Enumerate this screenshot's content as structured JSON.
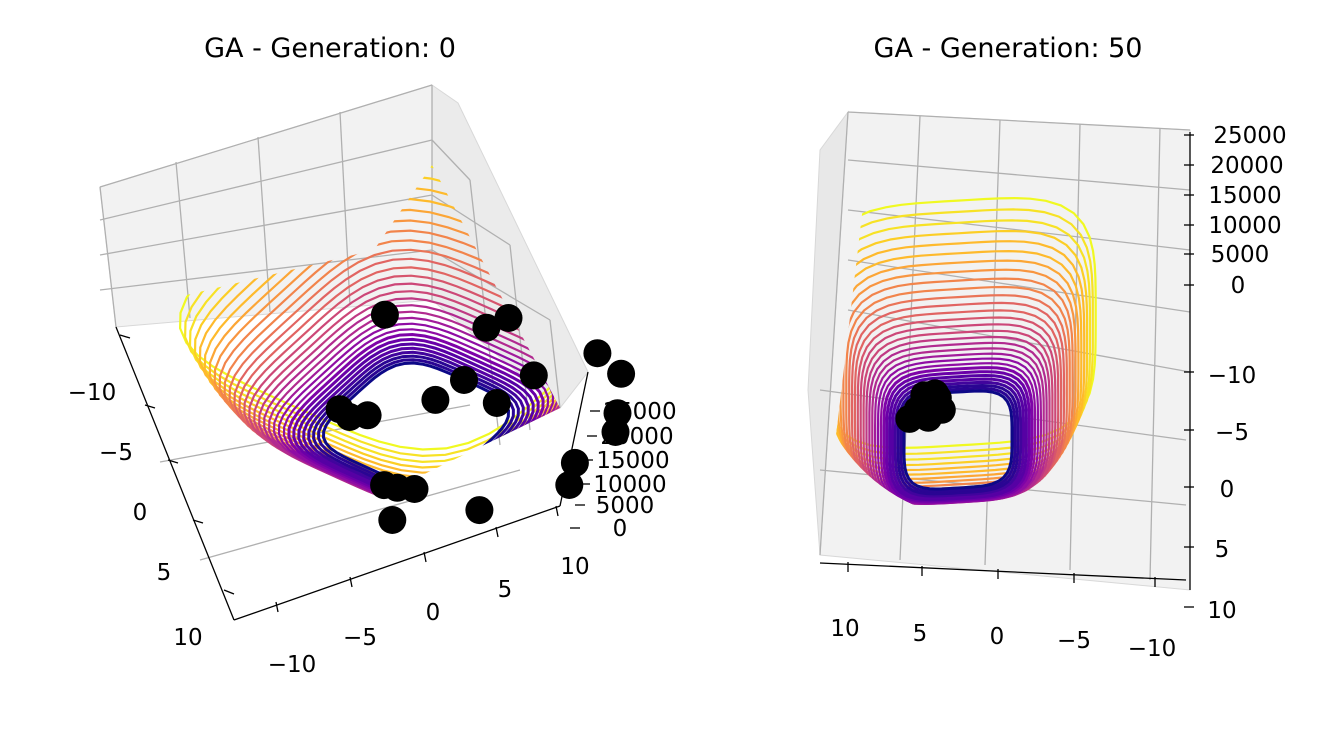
{
  "chart_data": [
    {
      "type": "scatter",
      "subtype": "3d-surface-contour-with-population",
      "title": "GA - Generation: 0",
      "colormap": "plasma",
      "x_ticks": [
        "−10",
        "−5",
        "0",
        "5",
        "10"
      ],
      "y_ticks": [
        "−10",
        "−5",
        "0",
        "5",
        "10"
      ],
      "z_ticks": [
        "0",
        "5000",
        "10000",
        "15000",
        "20000",
        "25000"
      ],
      "xlim": [
        -10,
        10
      ],
      "ylim": [
        -10,
        10
      ],
      "zlim": [
        0,
        25000
      ],
      "grid": true,
      "marker_color": "#000000",
      "population": [
        {
          "x": -6.8,
          "y": -3.5
        },
        {
          "x": -3.5,
          "y": -6.5
        },
        {
          "x": -3.0,
          "y": -4.0
        },
        {
          "x": -2.2,
          "y": -4.4
        },
        {
          "x": -1.5,
          "y": -4.6
        },
        {
          "x": -9.5,
          "y": 0.5
        },
        {
          "x": -8.7,
          "y": 2.0
        },
        {
          "x": -2.5,
          "y": 3.5
        },
        {
          "x": -2.8,
          "y": 6.2
        },
        {
          "x": 2.5,
          "y": -0.8
        },
        {
          "x": 3.2,
          "y": -1.4
        },
        {
          "x": 4.0,
          "y": -1.2
        },
        {
          "x": 0.3,
          "y": 2.0
        },
        {
          "x": 0.0,
          "y": 4.0
        },
        {
          "x": 1.5,
          "y": 7.8
        },
        {
          "x": 1.0,
          "y": 9.0
        },
        {
          "x": -6.5,
          "y": 8.7
        },
        {
          "x": -4.5,
          "y": 9.3
        },
        {
          "x": -9.0,
          "y": 5.0
        },
        {
          "x": -8.2,
          "y": 6.2
        },
        {
          "x": 6.5,
          "y": 5.8
        }
      ]
    },
    {
      "type": "scatter",
      "subtype": "3d-surface-contour-with-population",
      "title": "GA - Generation: 50",
      "colormap": "plasma",
      "x_ticks": [
        "10",
        "5",
        "0",
        "−5",
        "−10"
      ],
      "y_ticks": [
        "−10",
        "−5",
        "0",
        "5",
        "10"
      ],
      "z_ticks": [
        "0",
        "5000",
        "10000",
        "15000",
        "20000",
        "25000"
      ],
      "xlim": [
        -10,
        10
      ],
      "ylim": [
        -10,
        10
      ],
      "zlim": [
        0,
        25000
      ],
      "grid": true,
      "marker_color": "#000000",
      "population": [
        {
          "x": 3.6,
          "y": 2.0
        },
        {
          "x": 3.0,
          "y": 2.7
        },
        {
          "x": 2.2,
          "y": 2.0
        },
        {
          "x": 2.0,
          "y": 3.0
        },
        {
          "x": 1.5,
          "y": 3.6
        },
        {
          "x": 1.2,
          "y": 2.6
        },
        {
          "x": 2.5,
          "y": 3.9
        },
        {
          "x": 1.7,
          "y": 4.0
        }
      ]
    }
  ]
}
